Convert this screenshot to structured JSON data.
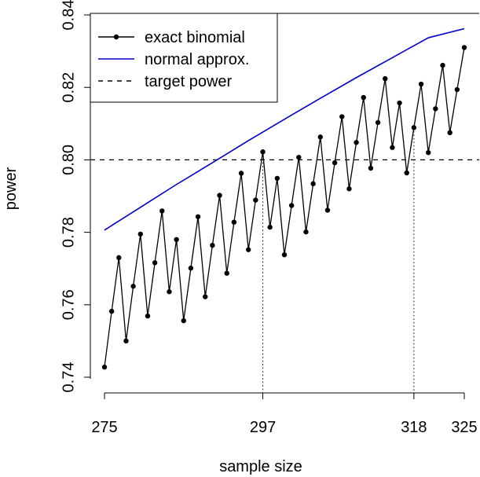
{
  "chart_data": {
    "type": "line",
    "xlabel": "sample size",
    "ylabel": "power",
    "xlim": [
      275,
      325
    ],
    "ylim": [
      0.74,
      0.84
    ],
    "x_ticks": [
      275,
      297,
      318,
      325
    ],
    "y_ticks": [
      0.74,
      0.76,
      0.78,
      0.8,
      0.82,
      0.84
    ],
    "y_tick_labels": [
      "0.74",
      "0.76",
      "0.78",
      "0.80",
      "0.82",
      "0.84"
    ],
    "grid": false,
    "legend_position": "top-left",
    "reference_lines": [
      {
        "orientation": "horizontal",
        "y": 0.8,
        "style": "dashed",
        "label": "target power"
      },
      {
        "orientation": "vertical",
        "x": 297,
        "style": "dotted"
      },
      {
        "orientation": "vertical",
        "x": 318,
        "style": "dotted"
      }
    ],
    "series": [
      {
        "name": "exact binomial",
        "color": "#000000",
        "marker": "dot",
        "x": [
          275,
          276,
          277,
          278,
          279,
          280,
          281,
          282,
          283,
          284,
          285,
          286,
          287,
          288,
          289,
          290,
          291,
          292,
          293,
          294,
          295,
          296,
          297,
          298,
          299,
          300,
          301,
          302,
          303,
          304,
          305,
          306,
          307,
          308,
          309,
          310,
          311,
          312,
          313,
          314,
          315,
          316,
          317,
          318,
          319,
          320,
          321,
          322,
          323,
          324,
          325
        ],
        "y": [
          0.7428,
          0.7582,
          0.773,
          0.75,
          0.7651,
          0.7795,
          0.7569,
          0.7716,
          0.7859,
          0.7636,
          0.778,
          0.7556,
          0.7701,
          0.7843,
          0.7622,
          0.7764,
          0.7902,
          0.7687,
          0.7828,
          0.7963,
          0.7752,
          0.7889,
          0.8022,
          0.7814,
          0.7949,
          0.7738,
          0.7874,
          0.8007,
          0.7801,
          0.7934,
          0.8063,
          0.7861,
          0.7992,
          0.8119,
          0.792,
          0.8048,
          0.8172,
          0.7977,
          0.8103,
          0.8224,
          0.8034,
          0.8157,
          0.7964,
          0.8089,
          0.8209,
          0.802,
          0.8141,
          0.8261,
          0.8075,
          0.8194,
          0.831
        ]
      },
      {
        "name": "normal approx.",
        "color": "#0000cc",
        "marker": "none",
        "x": [
          275,
          280,
          285,
          290,
          295,
          300,
          305,
          310,
          315,
          320,
          325
        ],
        "y": [
          0.7806,
          0.7869,
          0.7932,
          0.7992,
          0.8053,
          0.8112,
          0.817,
          0.8227,
          0.8282,
          0.8337,
          0.8362
        ]
      },
      {
        "name": "target power",
        "color": "#000000",
        "marker": "none",
        "style": "dashed",
        "x": [
          275,
          325
        ],
        "y": [
          0.8,
          0.8
        ]
      }
    ]
  }
}
